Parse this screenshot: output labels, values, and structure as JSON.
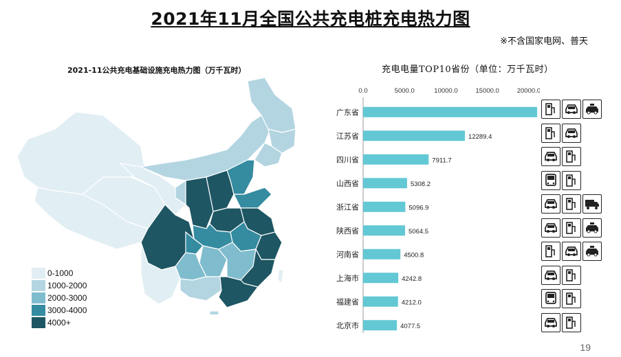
{
  "title": "2021年11月全国公共充电桩充电热力图",
  "note": "※不含国家电网、普天",
  "page_number": "19",
  "map": {
    "title": "2021-11公共充电基础设施充电热力图（万千瓦时）",
    "colors": [
      "#e1eef3",
      "#b3d5e1",
      "#7fbccd",
      "#358ba0",
      "#1e5663"
    ],
    "legend": [
      "0-1000",
      "1000-2000",
      "2000-3000",
      "3000-4000",
      "4000+"
    ]
  },
  "chart_data": {
    "type": "bar",
    "orientation": "horizontal",
    "title": "充电电量TOP10省份（单位：万千瓦时）",
    "categories": [
      "广东省",
      "江苏省",
      "四川省",
      "山西省",
      "浙江省",
      "陕西省",
      "河南省",
      "上海市",
      "福建省",
      "北京市"
    ],
    "values": [
      21009.8,
      12289.4,
      7911.7,
      5308.2,
      5096.9,
      5064.5,
      4500.8,
      4242.8,
      4212.0,
      4077.5
    ],
    "value_labels": [
      "21009.8",
      "12289.4",
      "7911.7",
      "5308.2",
      "5096.9",
      "5064.5",
      "4500.8",
      "4242.8",
      "4212.0",
      "4077.5"
    ],
    "xticks": [
      "0.0",
      "5000.0",
      "10000.0",
      "15000.0",
      "20000.0"
    ],
    "xlim": [
      0,
      22000
    ],
    "bar_color": "#62c8d4",
    "grid": false
  },
  "icons": [
    [
      "charger-icon",
      "car-icon",
      "taxi-icon"
    ],
    [
      "charger-icon",
      "car-icon"
    ],
    [
      "car-icon",
      "charger-icon"
    ],
    [
      "bus-icon",
      "charger-icon"
    ],
    [
      "car-icon",
      "charger-icon",
      "truck-icon"
    ],
    [
      "car-icon",
      "charger-icon",
      "taxi-icon"
    ],
    [
      "charger-icon",
      "car-icon",
      "taxi-icon"
    ],
    [
      "car-icon",
      "charger-icon"
    ],
    [
      "bus-icon",
      "charger-icon"
    ],
    [
      "car-icon",
      "charger-icon"
    ]
  ]
}
